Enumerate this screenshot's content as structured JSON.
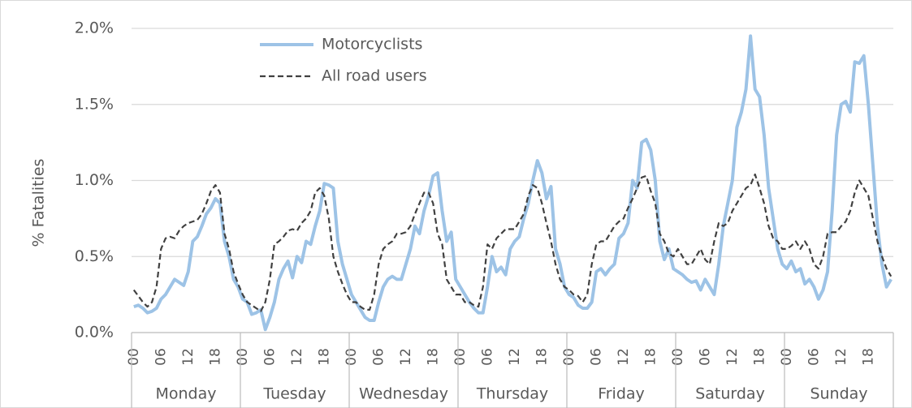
{
  "chart_data": {
    "type": "line",
    "ylabel": "% Fatalities",
    "categories": [
      "00",
      null,
      null,
      null,
      null,
      null,
      "06",
      null,
      null,
      null,
      null,
      null,
      "12",
      null,
      null,
      null,
      null,
      null,
      "18",
      null,
      null,
      null,
      null,
      null,
      "00",
      null,
      null,
      null,
      null,
      null,
      "06",
      null,
      null,
      null,
      null,
      null,
      "12",
      null,
      null,
      null,
      null,
      null,
      "18",
      null,
      null,
      null,
      null,
      null,
      "00",
      null,
      null,
      null,
      null,
      null,
      "06",
      null,
      null,
      null,
      null,
      null,
      "12",
      null,
      null,
      null,
      null,
      null,
      "18",
      null,
      null,
      null,
      null,
      null,
      "00",
      null,
      null,
      null,
      null,
      null,
      "06",
      null,
      null,
      null,
      null,
      null,
      "12",
      null,
      null,
      null,
      null,
      null,
      "18",
      null,
      null,
      null,
      null,
      null,
      "00",
      null,
      null,
      null,
      null,
      null,
      "06",
      null,
      null,
      null,
      null,
      null,
      "12",
      null,
      null,
      null,
      null,
      null,
      "18",
      null,
      null,
      null,
      null,
      null,
      "00",
      null,
      null,
      null,
      null,
      null,
      "06",
      null,
      null,
      null,
      null,
      null,
      "12",
      null,
      null,
      null,
      null,
      null,
      "18",
      null,
      null,
      null,
      null,
      null,
      "00",
      null,
      null,
      null,
      null,
      null,
      "06",
      null,
      null,
      null,
      null,
      null,
      "12",
      null,
      null,
      null,
      null,
      null,
      "18",
      null,
      null,
      null,
      null,
      null
    ],
    "groups": [
      "Monday",
      "Tuesday",
      "Wednesday",
      "Thursday",
      "Friday",
      "Saturday",
      "Sunday"
    ],
    "series": [
      {
        "name": "Motorcyclists",
        "color": "#9dc3e6",
        "linestyle": "solid",
        "values": [
          0.17,
          0.18,
          0.16,
          0.13,
          0.14,
          0.16,
          0.22,
          0.25,
          0.3,
          0.35,
          0.33,
          0.31,
          0.4,
          0.6,
          0.63,
          0.7,
          0.78,
          0.82,
          0.88,
          0.85,
          0.6,
          0.5,
          0.35,
          0.3,
          0.22,
          0.2,
          0.12,
          0.13,
          0.15,
          0.02,
          0.1,
          0.2,
          0.35,
          0.42,
          0.47,
          0.36,
          0.5,
          0.46,
          0.6,
          0.58,
          0.7,
          0.8,
          0.98,
          0.97,
          0.95,
          0.6,
          0.45,
          0.35,
          0.25,
          0.2,
          0.15,
          0.1,
          0.08,
          0.08,
          0.2,
          0.3,
          0.35,
          0.37,
          0.35,
          0.35,
          0.45,
          0.55,
          0.7,
          0.65,
          0.8,
          0.9,
          1.03,
          1.05,
          0.8,
          0.6,
          0.66,
          0.35,
          0.3,
          0.25,
          0.2,
          0.16,
          0.13,
          0.13,
          0.3,
          0.5,
          0.4,
          0.43,
          0.38,
          0.55,
          0.6,
          0.63,
          0.75,
          0.85,
          1.0,
          1.13,
          1.05,
          0.88,
          0.96,
          0.55,
          0.45,
          0.3,
          0.25,
          0.23,
          0.18,
          0.16,
          0.16,
          0.2,
          0.4,
          0.42,
          0.38,
          0.42,
          0.45,
          0.62,
          0.65,
          0.72,
          1.0,
          0.95,
          1.25,
          1.27,
          1.2,
          1.0,
          0.6,
          0.48,
          0.55,
          0.42,
          0.4,
          0.38,
          0.35,
          0.33,
          0.34,
          0.28,
          0.35,
          0.3,
          0.25,
          0.45,
          0.7,
          0.85,
          1.0,
          1.35,
          1.45,
          1.6,
          1.95,
          1.6,
          1.55,
          1.3,
          0.95,
          0.75,
          0.55,
          0.45,
          0.42,
          0.47,
          0.4,
          0.42,
          0.32,
          0.35,
          0.3,
          0.22,
          0.28,
          0.4,
          0.8,
          1.3,
          1.5,
          1.52,
          1.45,
          1.78,
          1.77,
          1.82,
          1.5,
          1.1,
          0.7,
          0.45,
          0.3,
          0.35
        ]
      },
      {
        "name": "All road users",
        "color": "#404040",
        "linestyle": "dashed",
        "values": [
          0.28,
          0.24,
          0.2,
          0.17,
          0.2,
          0.3,
          0.55,
          0.62,
          0.63,
          0.62,
          0.67,
          0.7,
          0.72,
          0.73,
          0.74,
          0.78,
          0.85,
          0.93,
          0.97,
          0.92,
          0.65,
          0.55,
          0.4,
          0.32,
          0.25,
          0.2,
          0.18,
          0.16,
          0.14,
          0.2,
          0.35,
          0.58,
          0.6,
          0.63,
          0.67,
          0.68,
          0.67,
          0.72,
          0.75,
          0.8,
          0.92,
          0.95,
          0.9,
          0.75,
          0.5,
          0.4,
          0.32,
          0.25,
          0.2,
          0.2,
          0.17,
          0.15,
          0.15,
          0.25,
          0.45,
          0.55,
          0.58,
          0.6,
          0.65,
          0.65,
          0.66,
          0.7,
          0.78,
          0.85,
          0.92,
          0.92,
          0.85,
          0.65,
          0.58,
          0.35,
          0.3,
          0.25,
          0.25,
          0.2,
          0.2,
          0.18,
          0.17,
          0.3,
          0.58,
          0.55,
          0.62,
          0.65,
          0.68,
          0.68,
          0.68,
          0.73,
          0.78,
          0.9,
          0.97,
          0.95,
          0.85,
          0.72,
          0.6,
          0.45,
          0.35,
          0.3,
          0.28,
          0.25,
          0.24,
          0.2,
          0.25,
          0.45,
          0.58,
          0.6,
          0.6,
          0.65,
          0.7,
          0.73,
          0.75,
          0.82,
          0.88,
          0.95,
          1.02,
          1.03,
          0.93,
          0.85,
          0.65,
          0.6,
          0.52,
          0.5,
          0.55,
          0.5,
          0.45,
          0.45,
          0.5,
          0.55,
          0.48,
          0.45,
          0.6,
          0.72,
          0.7,
          0.72,
          0.8,
          0.85,
          0.9,
          0.95,
          0.97,
          1.04,
          0.95,
          0.85,
          0.7,
          0.62,
          0.6,
          0.55,
          0.55,
          0.57,
          0.6,
          0.55,
          0.6,
          0.55,
          0.45,
          0.42,
          0.5,
          0.65,
          0.66,
          0.66,
          0.7,
          0.73,
          0.8,
          0.92,
          1.0,
          0.95,
          0.9,
          0.75,
          0.6,
          0.5,
          0.42,
          0.37
        ]
      }
    ],
    "ylim": [
      0,
      2
    ],
    "yticks": [
      {
        "value": 0,
        "label": "0.0%"
      },
      {
        "value": 0.5,
        "label": "0.5%"
      },
      {
        "value": 1,
        "label": "1.0%"
      },
      {
        "value": 1.5,
        "label": "1.5%"
      },
      {
        "value": 2,
        "label": "2.0%"
      }
    ],
    "grid": true,
    "legend": "top-left"
  }
}
